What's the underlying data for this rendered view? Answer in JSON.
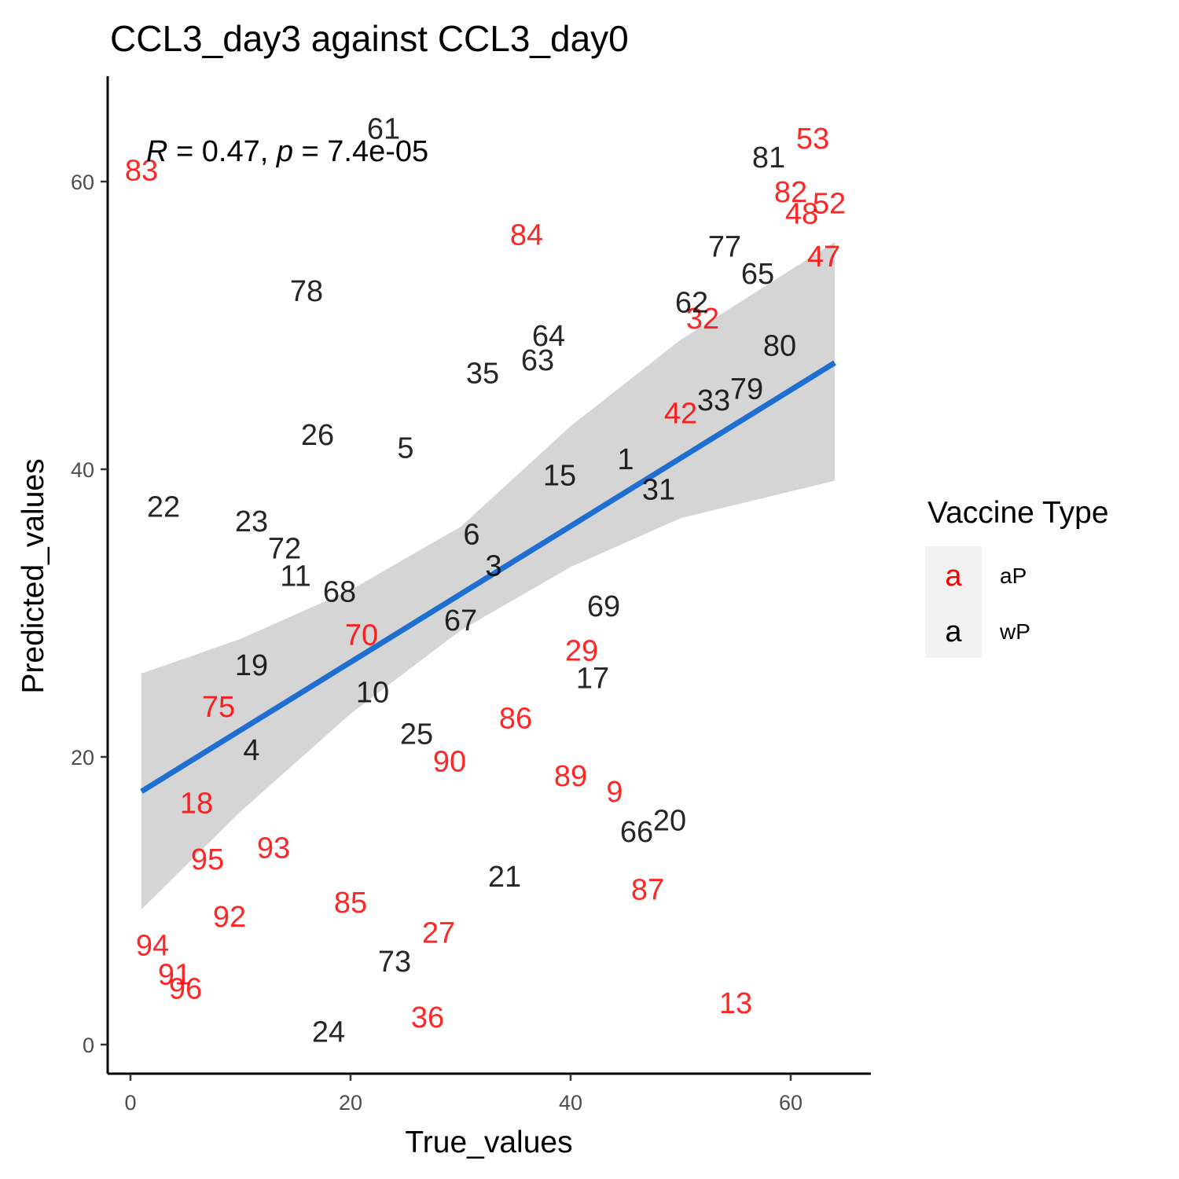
{
  "chart_data": {
    "type": "scatter",
    "title": "CCL3_day3 against CCL3_day0",
    "xlabel": "True_values",
    "ylabel": "Predicted_values",
    "xlim": [
      -2,
      67
    ],
    "ylim": [
      -2,
      67.5
    ],
    "xticks": [
      0,
      20,
      40,
      60
    ],
    "yticks": [
      0,
      20,
      40,
      60
    ],
    "xtick_labels": [
      "0",
      "20",
      "40",
      "60"
    ],
    "ytick_labels": [
      "0",
      "20",
      "40",
      "60"
    ],
    "grid": false,
    "stat_annotation": {
      "r_symbol": "R",
      "r_text": " = 0.47, ",
      "p_symbol": "p",
      "p_text": " = 7.4e-05"
    },
    "legend": {
      "title": "Vaccine Type",
      "placement": "right",
      "key_glyph": "a",
      "entries": [
        {
          "label": "aP",
          "color": "#ff0000"
        },
        {
          "label": "wP",
          "color": "#000000"
        }
      ]
    },
    "series": [
      {
        "name": "aP",
        "color": "#ff0000",
        "points": [
          {
            "label": "83",
            "x": 1.0,
            "y": 60.8
          },
          {
            "label": "53",
            "x": 62.0,
            "y": 63.0
          },
          {
            "label": "82",
            "x": 60.0,
            "y": 59.3
          },
          {
            "label": "52",
            "x": 63.5,
            "y": 58.5
          },
          {
            "label": "48",
            "x": 61.0,
            "y": 57.8
          },
          {
            "label": "84",
            "x": 36.0,
            "y": 56.3
          },
          {
            "label": "47",
            "x": 63.0,
            "y": 54.8
          },
          {
            "label": "32",
            "x": 52.0,
            "y": 50.5
          },
          {
            "label": "42",
            "x": 50.0,
            "y": 43.9
          },
          {
            "label": "70",
            "x": 21.0,
            "y": 28.5
          },
          {
            "label": "29",
            "x": 41.0,
            "y": 27.4
          },
          {
            "label": "75",
            "x": 8.0,
            "y": 23.5
          },
          {
            "label": "86",
            "x": 35.0,
            "y": 22.7
          },
          {
            "label": "90",
            "x": 29.0,
            "y": 19.7
          },
          {
            "label": "89",
            "x": 40.0,
            "y": 18.7
          },
          {
            "label": "9",
            "x": 44.0,
            "y": 17.6
          },
          {
            "label": "18",
            "x": 6.0,
            "y": 16.8
          },
          {
            "label": "93",
            "x": 13.0,
            "y": 13.7
          },
          {
            "label": "95",
            "x": 7.0,
            "y": 12.9
          },
          {
            "label": "87",
            "x": 47.0,
            "y": 10.8
          },
          {
            "label": "85",
            "x": 20.0,
            "y": 9.9
          },
          {
            "label": "92",
            "x": 9.0,
            "y": 8.9
          },
          {
            "label": "27",
            "x": 28.0,
            "y": 7.8
          },
          {
            "label": "94",
            "x": 2.0,
            "y": 6.9
          },
          {
            "label": "91",
            "x": 4.0,
            "y": 4.9
          },
          {
            "label": "96",
            "x": 5.0,
            "y": 3.9
          },
          {
            "label": "13",
            "x": 55.0,
            "y": 2.9
          },
          {
            "label": "36",
            "x": 27.0,
            "y": 1.9
          }
        ]
      },
      {
        "name": "wP",
        "color": "#000000",
        "points": [
          {
            "label": "61",
            "x": 23.0,
            "y": 63.7
          },
          {
            "label": "81",
            "x": 58.0,
            "y": 61.7
          },
          {
            "label": "77",
            "x": 54.0,
            "y": 55.5
          },
          {
            "label": "65",
            "x": 57.0,
            "y": 53.6
          },
          {
            "label": "78",
            "x": 16.0,
            "y": 52.4
          },
          {
            "label": "62",
            "x": 51.0,
            "y": 51.6
          },
          {
            "label": "64",
            "x": 38.0,
            "y": 49.3
          },
          {
            "label": "80",
            "x": 59.0,
            "y": 48.6
          },
          {
            "label": "63",
            "x": 37.0,
            "y": 47.6
          },
          {
            "label": "35",
            "x": 32.0,
            "y": 46.7
          },
          {
            "label": "79",
            "x": 56.0,
            "y": 45.6
          },
          {
            "label": "33",
            "x": 53.0,
            "y": 44.8
          },
          {
            "label": "26",
            "x": 17.0,
            "y": 42.4
          },
          {
            "label": "5",
            "x": 25.0,
            "y": 41.5
          },
          {
            "label": "1",
            "x": 45.0,
            "y": 40.7
          },
          {
            "label": "15",
            "x": 39.0,
            "y": 39.6
          },
          {
            "label": "31",
            "x": 48.0,
            "y": 38.6
          },
          {
            "label": "22",
            "x": 3.0,
            "y": 37.4
          },
          {
            "label": "23",
            "x": 11.0,
            "y": 36.4
          },
          {
            "label": "6",
            "x": 31.0,
            "y": 35.5
          },
          {
            "label": "72",
            "x": 14.0,
            "y": 34.5
          },
          {
            "label": "3",
            "x": 33.0,
            "y": 33.3
          },
          {
            "label": "11",
            "x": 15.0,
            "y": 32.6
          },
          {
            "label": "68",
            "x": 19.0,
            "y": 31.5
          },
          {
            "label": "69",
            "x": 43.0,
            "y": 30.5
          },
          {
            "label": "67",
            "x": 30.0,
            "y": 29.5
          },
          {
            "label": "19",
            "x": 11.0,
            "y": 26.4
          },
          {
            "label": "17",
            "x": 42.0,
            "y": 25.5
          },
          {
            "label": "10",
            "x": 22.0,
            "y": 24.5
          },
          {
            "label": "25",
            "x": 26.0,
            "y": 21.6
          },
          {
            "label": "4",
            "x": 11.0,
            "y": 20.5
          },
          {
            "label": "20",
            "x": 49.0,
            "y": 15.6
          },
          {
            "label": "66",
            "x": 46.0,
            "y": 14.8
          },
          {
            "label": "21",
            "x": 34.0,
            "y": 11.7
          },
          {
            "label": "73",
            "x": 24.0,
            "y": 5.8
          },
          {
            "label": "24",
            "x": 18.0,
            "y": 0.9
          }
        ]
      }
    ],
    "fit_line": {
      "color": "#1f6fd0",
      "x_start": 1.0,
      "x_end": 64.0,
      "y_start": 17.6,
      "y_end": 47.4,
      "ci_color": "#d5d5d5",
      "ci_upper": [
        [
          1,
          25.8
        ],
        [
          10,
          28.2
        ],
        [
          20,
          31.6
        ],
        [
          30,
          36.0
        ],
        [
          40,
          43.0
        ],
        [
          50,
          49.0
        ],
        [
          64,
          55.8
        ]
      ],
      "ci_lower": [
        [
          1,
          9.4
        ],
        [
          10,
          16.2
        ],
        [
          20,
          23.0
        ],
        [
          30,
          28.8
        ],
        [
          40,
          33.2
        ],
        [
          50,
          36.6
        ],
        [
          64,
          39.2
        ]
      ]
    }
  }
}
